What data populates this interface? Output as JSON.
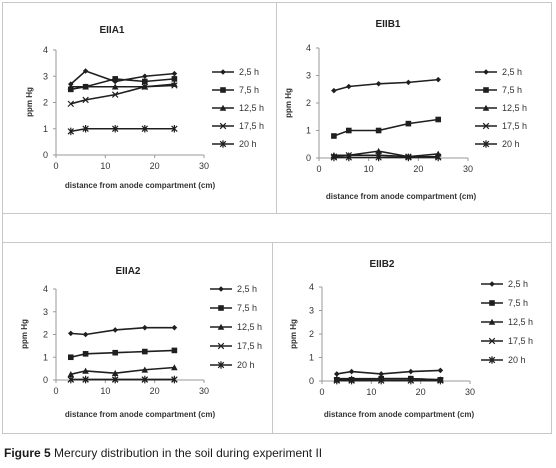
{
  "caption": {
    "label": "Figure 5",
    "text": " Mercury distribution in the soil during experiment II"
  },
  "legend_entries": [
    "2,5 h",
    "7,5 h",
    "12,5 h",
    "17,5 h",
    "20 h"
  ],
  "colors": {
    "series": "#1f1f1f",
    "axis": "#9a9a9a",
    "border": "#c8c8c8"
  },
  "chart_data": [
    {
      "type": "line",
      "title": "EIIA1",
      "xlabel": "distance from  anode compartment (cm)",
      "ylabel": "ppm  Hg",
      "xlim": [
        0,
        30
      ],
      "ylim": [
        0,
        4
      ],
      "xticks": [
        0,
        10,
        20,
        30
      ],
      "yticks": [
        0,
        1,
        2,
        3,
        4
      ],
      "legend": "right",
      "grid": false,
      "x": [
        3,
        6,
        12,
        18,
        24
      ],
      "series": [
        {
          "name": "2,5 h",
          "marker": "diamond",
          "values": [
            2.7,
            3.2,
            2.8,
            3.0,
            3.1
          ]
        },
        {
          "name": "7,5 h",
          "marker": "square",
          "values": [
            2.5,
            2.6,
            2.9,
            2.8,
            2.9
          ]
        },
        {
          "name": "12,5 h",
          "marker": "triangle",
          "values": [
            2.6,
            2.6,
            2.6,
            2.6,
            2.7
          ]
        },
        {
          "name": "17,5 h",
          "marker": "x",
          "values": [
            1.95,
            2.1,
            2.3,
            2.6,
            2.65
          ]
        },
        {
          "name": "20 h",
          "marker": "star",
          "values": [
            0.9,
            1.0,
            1.0,
            1.0,
            1.0
          ]
        }
      ]
    },
    {
      "type": "line",
      "title": "EIIB1",
      "xlabel": "distance from  anode compartment (cm)",
      "ylabel": "ppm  Hg",
      "xlim": [
        0,
        30
      ],
      "ylim": [
        0,
        4
      ],
      "xticks": [
        0,
        10,
        20,
        30
      ],
      "yticks": [
        0,
        1,
        2,
        3,
        4
      ],
      "legend": "right",
      "grid": false,
      "x": [
        3,
        6,
        12,
        18,
        24
      ],
      "series": [
        {
          "name": "2,5 h",
          "marker": "diamond",
          "values": [
            2.45,
            2.6,
            2.7,
            2.75,
            2.85
          ]
        },
        {
          "name": "7,5 h",
          "marker": "square",
          "values": [
            0.8,
            1.0,
            1.0,
            1.25,
            1.4
          ]
        },
        {
          "name": "12,5 h",
          "marker": "triangle",
          "values": [
            0.1,
            0.1,
            0.25,
            0.05,
            0.15
          ]
        },
        {
          "name": "17,5 h",
          "marker": "x",
          "values": [
            0.05,
            0.1,
            0.1,
            0.05,
            0.05
          ]
        },
        {
          "name": "20 h",
          "marker": "star",
          "values": [
            0.02,
            0.02,
            0.02,
            0.02,
            0.02
          ]
        }
      ]
    },
    {
      "type": "line",
      "title": "EIIA2",
      "xlabel": "distance from  anode compartment (cm)",
      "ylabel": "ppm  Hg",
      "xlim": [
        0,
        30
      ],
      "ylim": [
        0,
        4
      ],
      "xticks": [
        0,
        10,
        20,
        30
      ],
      "yticks": [
        0,
        1,
        2,
        3,
        4
      ],
      "legend": "right",
      "grid": false,
      "x": [
        3,
        6,
        12,
        18,
        24
      ],
      "series": [
        {
          "name": "2,5 h",
          "marker": "diamond",
          "values": [
            2.05,
            2.0,
            2.2,
            2.3,
            2.3
          ]
        },
        {
          "name": "7,5 h",
          "marker": "square",
          "values": [
            1.0,
            1.15,
            1.2,
            1.25,
            1.3
          ]
        },
        {
          "name": "12,5 h",
          "marker": "triangle",
          "values": [
            0.25,
            0.4,
            0.3,
            0.45,
            0.55
          ]
        },
        {
          "name": "17,5 h",
          "marker": "x",
          "values": [
            0.02,
            0.02,
            0.02,
            0.02,
            0.02
          ]
        },
        {
          "name": "20 h",
          "marker": "star",
          "values": [
            0.02,
            0.02,
            0.02,
            0.02,
            0.02
          ]
        }
      ]
    },
    {
      "type": "line",
      "title": "EIIB2",
      "xlabel": "distance from  anode compartment (cm)",
      "ylabel": "ppm  Hg",
      "xlim": [
        0,
        30
      ],
      "ylim": [
        0,
        4
      ],
      "xticks": [
        0,
        10,
        20,
        30
      ],
      "yticks": [
        0,
        1,
        2,
        3,
        4
      ],
      "legend": "right",
      "grid": false,
      "x": [
        3,
        6,
        12,
        18,
        24
      ],
      "series": [
        {
          "name": "2,5 h",
          "marker": "diamond",
          "values": [
            0.3,
            0.4,
            0.3,
            0.4,
            0.45
          ]
        },
        {
          "name": "7,5 h",
          "marker": "square",
          "values": [
            0.05,
            0.05,
            0.1,
            0.1,
            0.05
          ]
        },
        {
          "name": "12,5 h",
          "marker": "triangle",
          "values": [
            0.1,
            0.1,
            0.1,
            0.1,
            0.05
          ]
        },
        {
          "name": "17,5 h",
          "marker": "x",
          "values": [
            0.02,
            0.02,
            0.02,
            0.02,
            0.02
          ]
        },
        {
          "name": "20 h",
          "marker": "star",
          "values": [
            0.02,
            0.02,
            0.02,
            0.02,
            0.02
          ]
        }
      ]
    }
  ]
}
